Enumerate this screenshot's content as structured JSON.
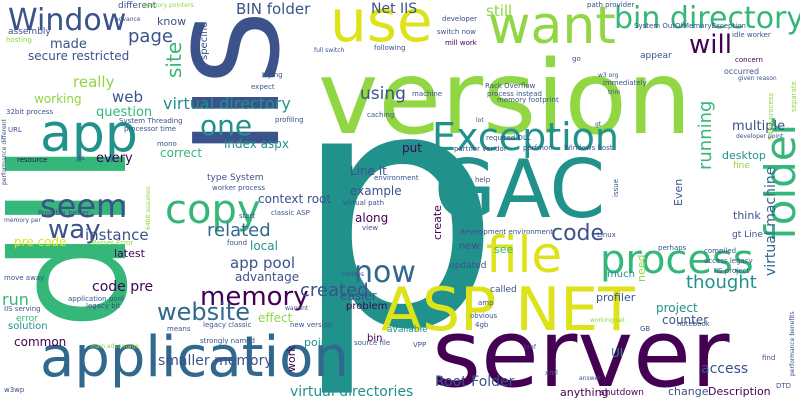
{
  "palette": {
    "purple": "#440154",
    "indigo": "#3b528b",
    "blue": "#31688e",
    "teal": "#21918c",
    "green": "#35b779",
    "lime": "#90d743",
    "yellow": "#dde318"
  },
  "words": [
    {
      "text": "p",
      "color": "#21918c"
    },
    {
      "text": "version",
      "color": "#90d743"
    },
    {
      "text": "IIS",
      "color": "#3b528b"
    },
    {
      "text": "dll",
      "color": "#35b779"
    },
    {
      "text": "server",
      "color": "#440154"
    },
    {
      "text": "GAC",
      "color": "#21918c"
    },
    {
      "text": "ASP NET",
      "color": "#dde318"
    },
    {
      "text": "application",
      "color": "#31688e"
    },
    {
      "text": "want",
      "color": "#90d743"
    },
    {
      "text": "use",
      "color": "#dde318"
    },
    {
      "text": "app",
      "color": "#21918c"
    },
    {
      "text": "file",
      "color": "#dde318"
    },
    {
      "text": "Exception",
      "color": "#21918c"
    },
    {
      "text": "process",
      "color": "#35b779"
    },
    {
      "text": "copy",
      "color": "#35b779"
    },
    {
      "text": "folder",
      "color": "#35b779"
    },
    {
      "text": "Window",
      "color": "#3b528b"
    },
    {
      "text": "bin directory",
      "color": "#35b779"
    },
    {
      "text": "now",
      "color": "#31688e"
    },
    {
      "text": "seem",
      "color": "#3b528b"
    },
    {
      "text": "one",
      "color": "#21918c"
    },
    {
      "text": "will",
      "color": "#440154"
    },
    {
      "text": "way",
      "color": "#3b528b"
    },
    {
      "text": "memory",
      "color": "#440154"
    },
    {
      "text": "website",
      "color": "#31688e"
    },
    {
      "text": "virtual directory",
      "color": "#21918c"
    },
    {
      "text": "site",
      "color": "#35b779"
    },
    {
      "text": "page",
      "color": "#3b528b"
    },
    {
      "text": "code",
      "color": "#3b528b"
    },
    {
      "text": "created",
      "color": "#3b528b"
    },
    {
      "text": "using",
      "color": "#3b528b"
    },
    {
      "text": "Net IIS",
      "color": "#3b528b"
    },
    {
      "text": "BIN folder",
      "color": "#3b528b"
    },
    {
      "text": "still",
      "color": "#90d743"
    },
    {
      "text": "related",
      "color": "#31688e"
    },
    {
      "text": "instance",
      "color": "#3b528b"
    },
    {
      "text": "really",
      "color": "#90d743"
    },
    {
      "text": "web",
      "color": "#3b528b"
    },
    {
      "text": "made",
      "color": "#3b528b"
    },
    {
      "text": "secure restricted",
      "color": "#3b528b"
    },
    {
      "text": "working",
      "color": "#90d743"
    },
    {
      "text": "question",
      "color": "#35b779"
    },
    {
      "text": "every",
      "color": "#440154"
    },
    {
      "text": "running",
      "color": "#35b779"
    },
    {
      "text": "virtual machine",
      "color": "#31688e"
    },
    {
      "text": "multiple",
      "color": "#3b528b"
    },
    {
      "text": "thought",
      "color": "#21918c"
    },
    {
      "text": "advantage",
      "color": "#3b528b"
    },
    {
      "text": "app pool",
      "color": "#3b528b"
    },
    {
      "text": "local",
      "color": "#21918c"
    },
    {
      "text": "effect",
      "color": "#90d743"
    },
    {
      "text": "smaller memory",
      "color": "#3b528b"
    },
    {
      "text": "virtual directories",
      "color": "#21918c"
    },
    {
      "text": "Root Folder",
      "color": "#3b528b"
    },
    {
      "text": "common",
      "color": "#440154"
    },
    {
      "text": "solution",
      "color": "#21918c"
    },
    {
      "text": "run",
      "color": "#35b779"
    },
    {
      "text": "code pre",
      "color": "#440154"
    },
    {
      "text": "pre code",
      "color": "#dde318"
    },
    {
      "text": "latest",
      "color": "#440154"
    },
    {
      "text": "error",
      "color": "#35b779"
    },
    {
      "text": "easier",
      "color": "#3b528b"
    },
    {
      "text": "project",
      "color": "#21918c"
    },
    {
      "text": "counter",
      "color": "#3b528b"
    },
    {
      "text": "profiler",
      "color": "#3b528b"
    },
    {
      "text": "access",
      "color": "#3b528b"
    },
    {
      "text": "UI",
      "color": "#21918c"
    },
    {
      "text": "change",
      "color": "#3b528b"
    },
    {
      "text": "Description",
      "color": "#440154"
    },
    {
      "text": "shutdown",
      "color": "#440154"
    },
    {
      "text": "anything",
      "color": "#440154"
    },
    {
      "text": "point",
      "color": "#21918c"
    },
    {
      "text": "work",
      "color": "#440154"
    },
    {
      "text": "example",
      "color": "#3b528b"
    },
    {
      "text": "along",
      "color": "#440154"
    },
    {
      "text": "context root",
      "color": "#3b528b"
    },
    {
      "text": "index aspx",
      "color": "#21918c"
    },
    {
      "text": "Line lt",
      "color": "#3b528b"
    },
    {
      "text": "put",
      "color": "#440154"
    },
    {
      "text": "create",
      "color": "#440154"
    },
    {
      "text": "Even",
      "color": "#3b528b"
    },
    {
      "text": "desktop",
      "color": "#21918c"
    },
    {
      "text": "fine",
      "color": "#90d743"
    },
    {
      "text": "think",
      "color": "#3b528b"
    },
    {
      "text": "gt Line",
      "color": "#3b528b"
    },
    {
      "text": "know",
      "color": "#3b528b"
    },
    {
      "text": "specific",
      "color": "#3b528b"
    },
    {
      "text": "different",
      "color": "#3b528b"
    },
    {
      "text": "assembly",
      "color": "#3b528b"
    },
    {
      "text": "need",
      "color": "#90d743"
    },
    {
      "text": "much",
      "color": "#21918c"
    },
    {
      "text": "see",
      "color": "#35b779"
    },
    {
      "text": "called",
      "color": "#3b528b"
    },
    {
      "text": "new",
      "color": "#3b528b"
    },
    {
      "text": "updated",
      "color": "#3b528b"
    },
    {
      "text": "appear",
      "color": "#3b528b"
    },
    {
      "text": "occurred",
      "color": "#3b528b"
    },
    {
      "text": "bin",
      "color": "#440154"
    },
    {
      "text": "problem",
      "color": "#440154"
    },
    {
      "text": "available",
      "color": "#21918c"
    },
    {
      "text": "type System",
      "color": "#3b528b"
    },
    {
      "text": "correct",
      "color": "#35b779"
    },
    {
      "text": "64bit process",
      "color": "#90d743"
    },
    {
      "text": "separate",
      "color": "#90d743"
    },
    {
      "text": "System OutOfMemoryException",
      "color": "#3b528b"
    },
    {
      "text": "path provider",
      "color": "#3b528b"
    },
    {
      "text": "Rack Overflow",
      "color": "#3b528b"
    },
    {
      "text": "process instead",
      "color": "#3b528b"
    },
    {
      "text": "memory footprint",
      "color": "#3b528b"
    },
    {
      "text": "immediately",
      "color": "#3b528b"
    },
    {
      "text": "developer",
      "color": "#3b528b"
    },
    {
      "text": "switch now",
      "color": "#3b528b"
    },
    {
      "text": "mill work",
      "color": "#440154"
    },
    {
      "text": "following",
      "color": "#3b528b"
    },
    {
      "text": "machine",
      "color": "#3b528b"
    },
    {
      "text": "perfmon",
      "color": "#3b528b"
    },
    {
      "text": "Windows host",
      "color": "#3b528b"
    },
    {
      "text": "partner vendor",
      "color": "#3b528b"
    },
    {
      "text": "required DLL",
      "color": "#3b528b"
    },
    {
      "text": "profiling",
      "color": "#3b528b"
    },
    {
      "text": "caching",
      "color": "#3b528b"
    },
    {
      "text": "processor time",
      "color": "#3b528b"
    },
    {
      "text": "System Threading",
      "color": "#3b528b"
    },
    {
      "text": "resource",
      "color": "#440154"
    },
    {
      "text": "worker process",
      "color": "#3b528b"
    },
    {
      "text": "start",
      "color": "#3b528b"
    },
    {
      "text": "classic ASP",
      "color": "#3b528b"
    },
    {
      "text": "found",
      "color": "#3b528b"
    },
    {
      "text": "Virtual path",
      "color": "#3b528b"
    },
    {
      "text": "environment",
      "color": "#3b528b"
    },
    {
      "text": "view",
      "color": "#3b528b"
    },
    {
      "text": "development environment",
      "color": "#3b528b"
    },
    {
      "text": "Linux",
      "color": "#3b528b"
    },
    {
      "text": "perhaps",
      "color": "#3b528b"
    },
    {
      "text": "compiled",
      "color": "#3b528b"
    },
    {
      "text": "access legacy",
      "color": "#3b528b"
    },
    {
      "text": "IIS project",
      "color": "#3b528b"
    },
    {
      "text": "notebook",
      "color": "#3b528b"
    },
    {
      "text": "find",
      "color": "#3b528b"
    },
    {
      "text": "legacy classic",
      "color": "#3b528b"
    },
    {
      "text": "new version",
      "color": "#3b528b"
    },
    {
      "text": "strongly named",
      "color": "#3b528b"
    },
    {
      "text": "means",
      "color": "#3b528b"
    },
    {
      "text": "application pool",
      "color": "#3b528b"
    },
    {
      "text": "legacy bit",
      "color": "#3b528b"
    },
    {
      "text": "IIS serving",
      "color": "#3b528b"
    },
    {
      "text": "move away",
      "color": "#3b528b"
    },
    {
      "text": "source file",
      "color": "#3b528b"
    },
    {
      "text": "VPP",
      "color": "#3b528b"
    },
    {
      "text": "amp",
      "color": "#3b528b"
    },
    {
      "text": "obvious",
      "color": "#3b528b"
    },
    {
      "text": "4gb",
      "color": "#3b528b"
    },
    {
      "text": "xml",
      "color": "#3b528b"
    },
    {
      "text": "issue",
      "color": "#3b528b"
    },
    {
      "text": "help",
      "color": "#3b528b"
    },
    {
      "text": "mono",
      "color": "#3b528b"
    },
    {
      "text": "32bit process",
      "color": "#3b528b"
    },
    {
      "text": "advance",
      "color": "#3b528b"
    },
    {
      "text": "memory pointers",
      "color": "#90d743"
    },
    {
      "text": "hosting",
      "color": "#90d743"
    },
    {
      "text": "trying",
      "color": "#3b528b"
    },
    {
      "text": "expect",
      "color": "#3b528b"
    },
    {
      "text": "URL",
      "color": "#3b528b"
    },
    {
      "text": "full switch",
      "color": "#3b528b"
    },
    {
      "text": "idle worker",
      "color": "#3b528b"
    },
    {
      "text": "concern",
      "color": "#440154"
    },
    {
      "text": "given reason",
      "color": "#3b528b"
    },
    {
      "text": "developer point",
      "color": "#3b528b"
    },
    {
      "text": "performance benefits",
      "color": "#3b528b"
    },
    {
      "text": "performance different",
      "color": "#3b528b"
    },
    {
      "text": "Possibly better",
      "color": "#3b528b"
    },
    {
      "text": "memory per",
      "color": "#3b528b"
    },
    {
      "text": "Parser Error",
      "color": "#90d743"
    },
    {
      "text": "working set",
      "color": "#90d743"
    },
    {
      "text": "GB",
      "color": "#3b528b"
    },
    {
      "text": "answer",
      "color": "#3b528b"
    },
    {
      "text": "DTD",
      "color": "#3b528b"
    },
    {
      "text": "w3wp",
      "color": "#3b528b"
    },
    {
      "text": "main advantage",
      "color": "#90d743"
    },
    {
      "text": "w3 org",
      "color": "#3b528b"
    },
    {
      "text": "go",
      "color": "#3b528b"
    },
    {
      "text": "trim",
      "color": "#3b528b"
    },
    {
      "text": "lot",
      "color": "#3b528b"
    },
    {
      "text": "gt",
      "color": "#3b528b"
    },
    {
      "text": "BL",
      "color": "#3b528b"
    },
    {
      "text": "various",
      "color": "#3b528b"
    },
    {
      "text": "href",
      "color": "#3b528b"
    },
    {
      "text": "warrant",
      "color": "#3b528b"
    },
    {
      "text": "64bit assumes",
      "color": "#90d743"
    }
  ]
}
